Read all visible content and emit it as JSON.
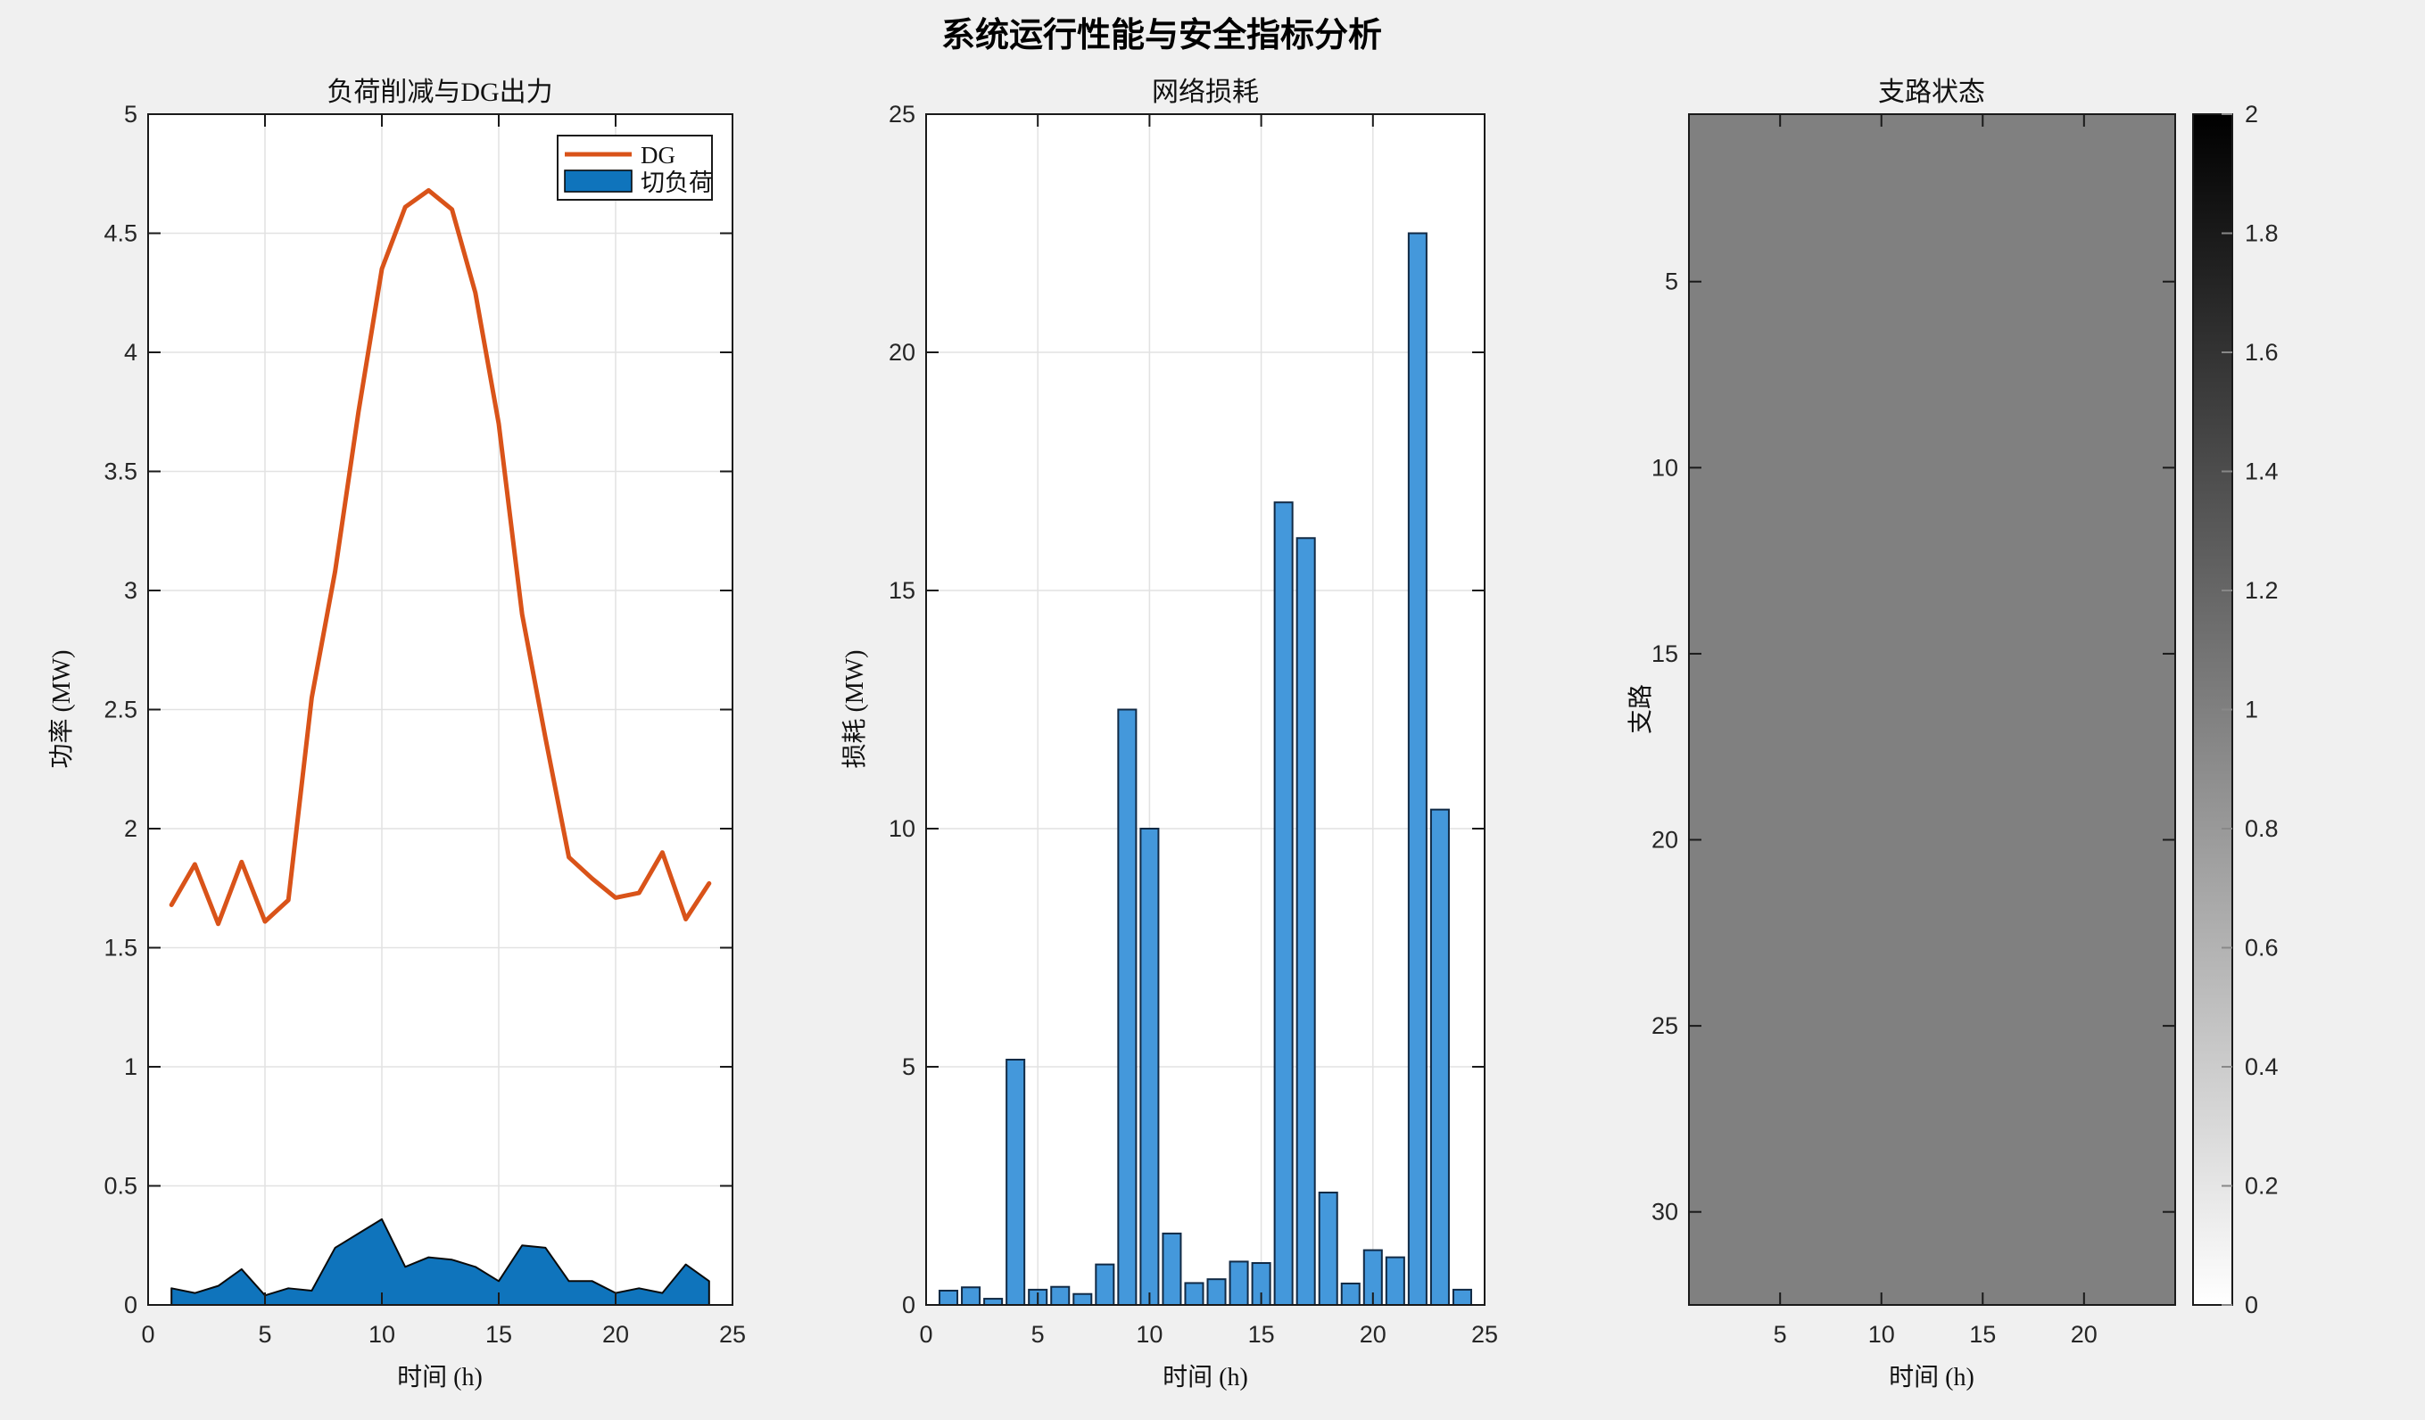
{
  "figure": {
    "title": "系统运行性能与安全指标分析",
    "background": "#F0F0F0",
    "plot_background": "#FFFFFF"
  },
  "colors": {
    "axis": "#1A1A1A",
    "grid": "#E2E2E2",
    "tick_text": "#262626",
    "dg_line": "#D95319",
    "shed_fill": "#0F74BC",
    "shed_edge": "#0A0A0A",
    "bar_fill": "#4498DB",
    "bar_edge": "#112A45"
  },
  "chart_data": [
    {
      "id": "load-dg",
      "type": "line+area",
      "title": "负荷削减与DG出力",
      "xlabel": "时间 (h)",
      "ylabel": "功率 (MW)",
      "xlim": [
        0,
        25
      ],
      "ylim": [
        0,
        5
      ],
      "xticks": [
        0,
        5,
        10,
        15,
        20,
        25
      ],
      "yticks": [
        0,
        0.5,
        1,
        1.5,
        2,
        2.5,
        3,
        3.5,
        4,
        4.5,
        5
      ],
      "x": [
        1,
        2,
        3,
        4,
        5,
        6,
        7,
        8,
        9,
        10,
        11,
        12,
        13,
        14,
        15,
        16,
        17,
        18,
        19,
        20,
        21,
        22,
        23,
        24
      ],
      "series": [
        {
          "name": "DG",
          "type": "line",
          "color": "#D95319",
          "values": [
            1.68,
            1.85,
            1.6,
            1.86,
            1.61,
            1.7,
            2.55,
            3.08,
            3.75,
            4.35,
            4.61,
            4.68,
            4.6,
            4.25,
            3.7,
            2.9,
            2.38,
            1.88,
            1.79,
            1.71,
            1.73,
            1.9,
            1.62,
            1.77
          ]
        },
        {
          "name": "切负荷",
          "type": "area",
          "color": "#0F74BC",
          "values": [
            0.07,
            0.05,
            0.08,
            0.15,
            0.04,
            0.07,
            0.06,
            0.24,
            0.3,
            0.36,
            0.16,
            0.2,
            0.19,
            0.16,
            0.1,
            0.25,
            0.24,
            0.1,
            0.1,
            0.05,
            0.07,
            0.05,
            0.17,
            0.1
          ]
        }
      ],
      "legend": {
        "position": "northeast",
        "entries": [
          "DG",
          "切负荷"
        ]
      }
    },
    {
      "id": "network-losses",
      "type": "bar",
      "title": "网络损耗",
      "xlabel": "时间 (h)",
      "ylabel": "损耗 (MW)",
      "xlim": [
        0,
        25
      ],
      "ylim": [
        0,
        25
      ],
      "xticks": [
        0,
        5,
        10,
        15,
        20,
        25
      ],
      "yticks": [
        0,
        5,
        10,
        15,
        20,
        25
      ],
      "x": [
        1,
        2,
        3,
        4,
        5,
        6,
        7,
        8,
        9,
        10,
        11,
        12,
        13,
        14,
        15,
        16,
        17,
        18,
        19,
        20,
        21,
        22,
        23,
        24
      ],
      "values": [
        0.3,
        0.37,
        0.13,
        5.15,
        0.32,
        0.38,
        0.23,
        0.85,
        12.5,
        10.0,
        1.5,
        0.46,
        0.54,
        0.91,
        0.88,
        16.85,
        16.1,
        2.36,
        0.45,
        1.15,
        1.0,
        22.5,
        10.4,
        0.32
      ],
      "bar_width": 0.8
    },
    {
      "id": "branch-status",
      "type": "heatmap",
      "title": "支路状态",
      "xlabel": "时间 (h)",
      "ylabel": "支路",
      "rows": 32,
      "cols": 24,
      "uniform_value": 1,
      "xticks": [
        5,
        10,
        15,
        20
      ],
      "yticks": [
        5,
        10,
        15,
        20,
        25,
        30
      ],
      "colorbar": {
        "min": 0,
        "max": 2,
        "ticks": [
          0,
          0.2,
          0.4,
          0.6,
          0.8,
          1,
          1.2,
          1.4,
          1.6,
          1.8,
          2
        ],
        "top_color": "#000000",
        "bottom_color": "#FFFFFF"
      }
    }
  ]
}
